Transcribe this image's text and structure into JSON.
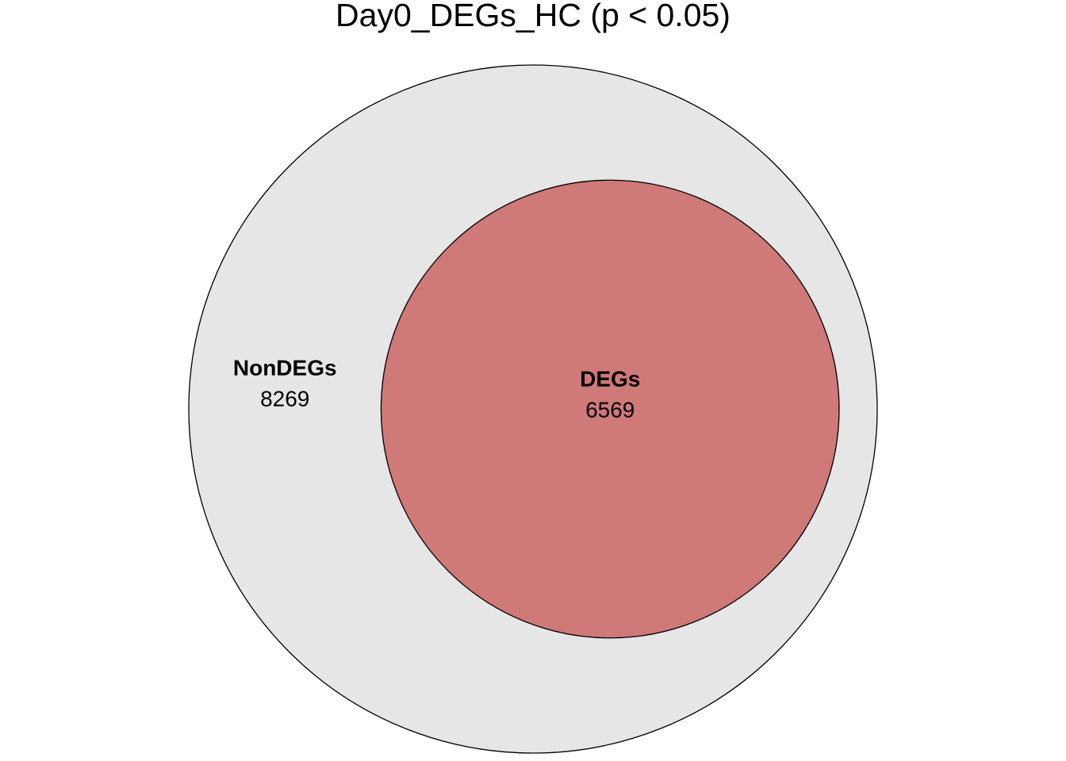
{
  "chart_data": {
    "type": "venn",
    "title": "Day0_DEGs_HC (p < 0.05)",
    "sets": [
      {
        "name": "NonDEGs",
        "value": 8269,
        "color": "#e6e6e6"
      },
      {
        "name": "DEGs",
        "value": 6569,
        "color": "#cf7978"
      }
    ]
  }
}
